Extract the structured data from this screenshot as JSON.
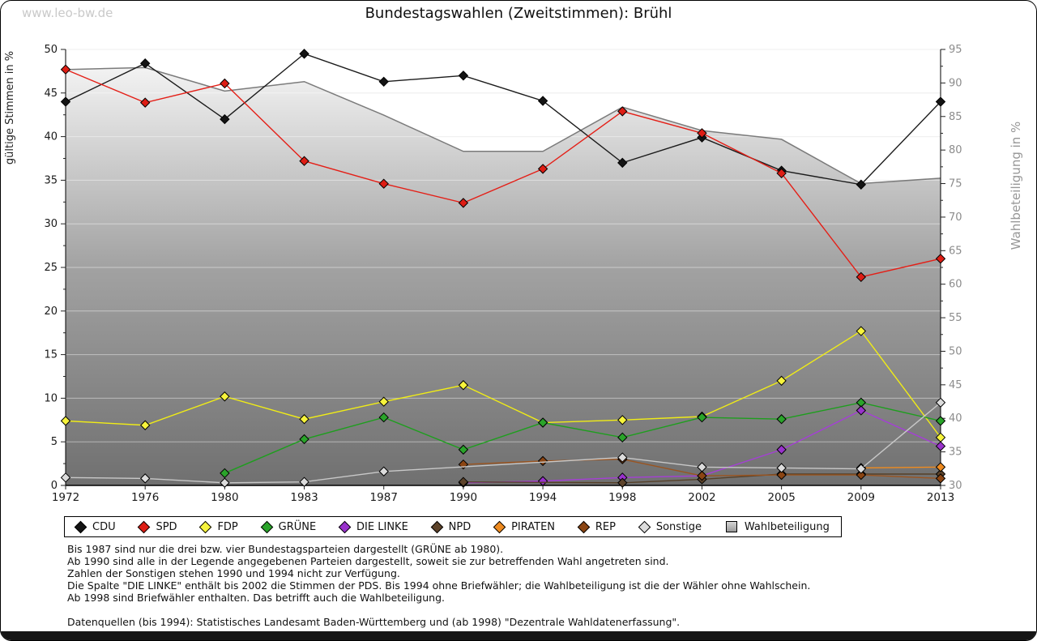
{
  "page": {
    "watermark": "www.leo-bw.de",
    "title": "Bundestagswahlen (Zweitstimmen): Brühl"
  },
  "chart_data": {
    "type": "line",
    "title": "Bundestagswahlen (Zweitstimmen): Brühl",
    "x_categories": [
      "1972",
      "1976",
      "1980",
      "1983",
      "1987",
      "1990",
      "1994",
      "1998",
      "2002",
      "2005",
      "2009",
      "2013"
    ],
    "y_left": {
      "label": "gültige Stimmen in %",
      "min": 0,
      "max": 50,
      "tick_step": 5,
      "minor_step": 2.5
    },
    "y_right": {
      "label": "Wahlbeteiligung in %",
      "min": 30,
      "max": 95,
      "tick_step": 5,
      "minor_step": 2.5
    },
    "grid": true,
    "legend_position": "bottom",
    "series": [
      {
        "name": "Wahlbeteiligung",
        "slug": "wahlbeteiligung",
        "type": "area",
        "axis": "right",
        "line_color": "#7b7b7b",
        "marker_color": "#b8b8b8",
        "values": [
          92.0,
          92.3,
          88.8,
          90.2,
          85.2,
          79.8,
          79.8,
          86.4,
          82.9,
          81.6,
          75.0,
          75.8
        ]
      },
      {
        "name": "CDU",
        "slug": "cdu",
        "type": "line",
        "axis": "left",
        "line_color": "#1b1b1b",
        "marker_color": "#141414",
        "values": [
          44.0,
          48.4,
          42.0,
          49.5,
          46.3,
          47.0,
          44.1,
          37.0,
          39.9,
          36.1,
          34.5,
          44.0
        ]
      },
      {
        "name": "SPD",
        "slug": "spd",
        "type": "line",
        "axis": "left",
        "line_color": "#e41f17",
        "marker_color": "#de1d14",
        "values": [
          47.7,
          43.9,
          46.1,
          37.2,
          34.6,
          32.4,
          36.3,
          42.9,
          40.4,
          35.8,
          23.9,
          26.0
        ]
      },
      {
        "name": "FDP",
        "slug": "fdp",
        "type": "line",
        "axis": "left",
        "line_color": "#f0ec16",
        "marker_color": "#f7f43c",
        "values": [
          7.4,
          6.9,
          10.2,
          7.6,
          9.6,
          11.5,
          7.2,
          7.5,
          7.9,
          12.0,
          17.7,
          5.5
        ]
      },
      {
        "name": "GRÜNE",
        "slug": "gruene",
        "type": "line",
        "axis": "left",
        "line_color": "#1e9e1e",
        "marker_color": "#2aa42a",
        "values": [
          null,
          null,
          1.4,
          5.3,
          7.8,
          4.1,
          7.2,
          5.5,
          7.8,
          7.6,
          9.5,
          7.4
        ]
      },
      {
        "name": "DIE LINKE",
        "slug": "die-linke",
        "type": "line",
        "axis": "left",
        "line_color": "#a53fd6",
        "marker_color": "#9932cc",
        "values": [
          null,
          null,
          null,
          null,
          null,
          0.3,
          0.5,
          0.9,
          1.1,
          4.1,
          8.6,
          4.5
        ]
      },
      {
        "name": "NPD",
        "slug": "npd",
        "type": "line",
        "axis": "left",
        "line_color": "#564028",
        "marker_color": "#5d432a",
        "values": [
          null,
          null,
          null,
          null,
          null,
          0.4,
          null,
          0.3,
          0.7,
          1.3,
          1.3,
          1.3
        ]
      },
      {
        "name": "PIRATEN",
        "slug": "piraten",
        "type": "line",
        "axis": "left",
        "line_color": "#f18c1e",
        "marker_color": "#ee8b20",
        "values": [
          null,
          null,
          null,
          null,
          null,
          null,
          null,
          null,
          null,
          null,
          2.0,
          2.1
        ]
      },
      {
        "name": "REP",
        "slug": "rep",
        "type": "line",
        "axis": "left",
        "line_color": "#9a5420",
        "marker_color": "#8b4513",
        "values": [
          null,
          null,
          null,
          null,
          null,
          2.4,
          2.8,
          3.0,
          1.1,
          1.2,
          1.2,
          0.8
        ]
      },
      {
        "name": "Sonstige",
        "slug": "sonstige",
        "type": "line",
        "axis": "left",
        "line_color": "#c8c8c8",
        "marker_color": "#dcdcdc",
        "values": [
          0.9,
          0.8,
          0.3,
          0.4,
          1.6,
          null,
          null,
          3.2,
          2.1,
          2.0,
          1.9,
          9.5
        ]
      }
    ],
    "legend_order": [
      "CDU",
      "SPD",
      "FDP",
      "GRÜNE",
      "DIE LINKE",
      "NPD",
      "PIRATEN",
      "REP",
      "Sonstige",
      "Wahlbeteiligung"
    ]
  },
  "notes": {
    "lines": [
      "Bis 1987 sind nur die drei bzw. vier Bundestagsparteien dargestellt (GRÜNE ab 1980).",
      "Ab 1990 sind alle in der Legende angegebenen Parteien dargestellt, soweit sie zur betreffenden Wahl angetreten sind.",
      "Zahlen der Sonstigen stehen 1990 und 1994 nicht zur Verfügung.",
      "Die Spalte \"DIE LINKE\" enthält bis 2002 die Stimmen der PDS. Bis 1994 ohne Briefwähler; die Wahlbeteiligung ist die der Wähler ohne Wahlschein.",
      "Ab 1998 sind Briefwähler enthalten. Das betrifft auch die Wahlbeteiligung."
    ],
    "datasource": "Datenquellen (bis 1994): Statistisches Landesamt Baden-Württemberg und (ab 1998) \"Dezentrale Wahldatenerfassung\"."
  }
}
